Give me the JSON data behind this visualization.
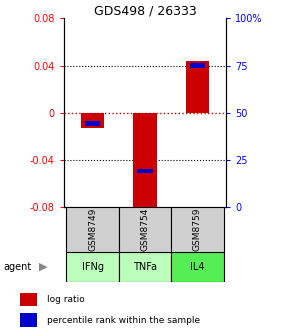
{
  "title": "GDS498 / 26333",
  "samples": [
    "GSM8749",
    "GSM8754",
    "GSM8759"
  ],
  "agents": [
    "IFNg",
    "TNFa",
    "IL4"
  ],
  "agent_colors": [
    "#bbffbb",
    "#bbffbb",
    "#55ee55"
  ],
  "log_ratios": [
    -0.013,
    -0.082,
    0.044
  ],
  "percentile_ranks": [
    44,
    19,
    75
  ],
  "ylim_left": [
    -0.08,
    0.08
  ],
  "ylim_right": [
    0,
    100
  ],
  "bar_width": 0.45,
  "bar_color_red": "#cc0000",
  "bar_color_blue": "#0000cc",
  "zero_line_color": "#cc0000",
  "grid_color": "#000000",
  "sample_box_color": "#d0d0d0",
  "legend_red_label": "log ratio",
  "legend_blue_label": "percentile rank within the sample",
  "left_yticks": [
    -0.08,
    -0.04,
    0,
    0.04,
    0.08
  ],
  "right_yticks": [
    0,
    25,
    50,
    75,
    100
  ],
  "right_ytick_labels": [
    "0",
    "25",
    "50",
    "75",
    "100%"
  ]
}
